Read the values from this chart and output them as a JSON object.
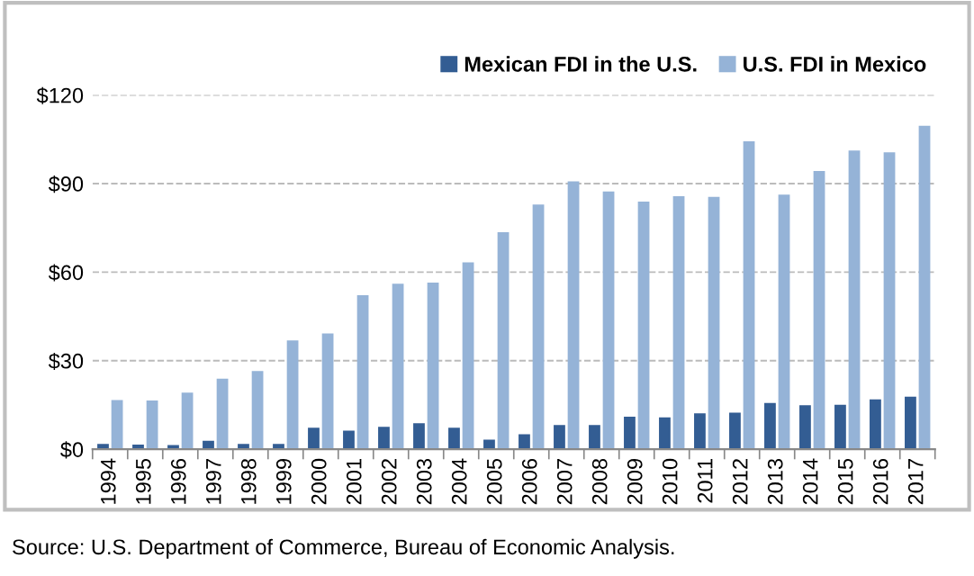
{
  "chart_data": {
    "type": "bar",
    "categories": [
      "1994",
      "1995",
      "1996",
      "1997",
      "1998",
      "1999",
      "2000",
      "2001",
      "2002",
      "2003",
      "2004",
      "2005",
      "2006",
      "2007",
      "2008",
      "2009",
      "2010",
      "2011",
      "2012",
      "2013",
      "2014",
      "2015",
      "2016",
      "2017"
    ],
    "series": [
      {
        "name": "Mexican FDI in the U.S.",
        "color": "#335d93",
        "values": [
          1.8,
          1.6,
          1.4,
          2.9,
          1.8,
          1.8,
          7.3,
          6.3,
          7.6,
          8.8,
          7.3,
          3.3,
          5.1,
          8.2,
          8.2,
          11.0,
          10.8,
          12.2,
          12.4,
          15.7,
          14.9,
          15.1,
          16.9,
          17.8
        ]
      },
      {
        "name": "U.S. FDI in Mexico",
        "color": "#95b3d7",
        "values": [
          16.7,
          16.5,
          19.2,
          23.9,
          26.5,
          36.9,
          39.2,
          52.2,
          56.1,
          56.5,
          63.3,
          73.5,
          82.9,
          90.8,
          87.3,
          83.9,
          85.7,
          85.5,
          104.3,
          86.3,
          94.3,
          101.2,
          100.6,
          109.6
        ]
      }
    ],
    "ylim": [
      0,
      120
    ],
    "yticks": [
      {
        "value": 0,
        "label": "$0"
      },
      {
        "value": 30,
        "label": "$30"
      },
      {
        "value": 60,
        "label": "$60"
      },
      {
        "value": 90,
        "label": "$90"
      },
      {
        "value": 120,
        "label": "$120"
      }
    ],
    "grid": "y",
    "legend": "top right",
    "annotations": [
      "Source: U.S. Department of Commerce, Bureau of Economic Analysis."
    ]
  }
}
